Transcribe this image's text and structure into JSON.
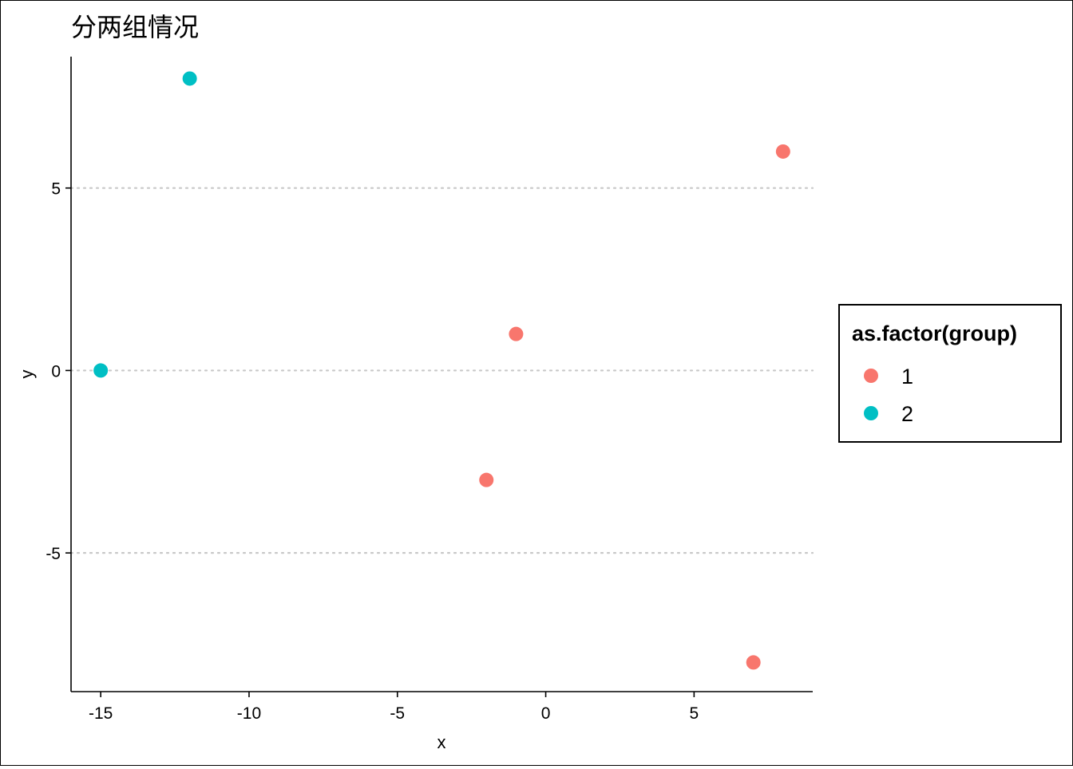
{
  "chart_data": {
    "type": "scatter",
    "title": "分两组情况",
    "xlabel": "x",
    "ylabel": "y",
    "xlim": [
      -16,
      9
    ],
    "ylim": [
      -8.8,
      8.6
    ],
    "x_ticks": [
      -15,
      -10,
      -5,
      0,
      5
    ],
    "y_ticks": [
      -5,
      0,
      5
    ],
    "grid": {
      "major_y": true,
      "major_x": false,
      "style": "dotted"
    },
    "legend": {
      "title": "as.factor(group)",
      "placement": "right",
      "entries": [
        {
          "label": "1",
          "color": "#F8766D"
        },
        {
          "label": "2",
          "color": "#00BFC4"
        }
      ]
    },
    "series": [
      {
        "name": "1",
        "color": "#F8766D",
        "points": [
          {
            "x": 8,
            "y": 6
          },
          {
            "x": -1,
            "y": 1
          },
          {
            "x": -2,
            "y": -3
          },
          {
            "x": 7,
            "y": -8
          }
        ]
      },
      {
        "name": "2",
        "color": "#00BFC4",
        "points": [
          {
            "x": -12,
            "y": 8
          },
          {
            "x": -15,
            "y": 0
          }
        ]
      }
    ]
  }
}
